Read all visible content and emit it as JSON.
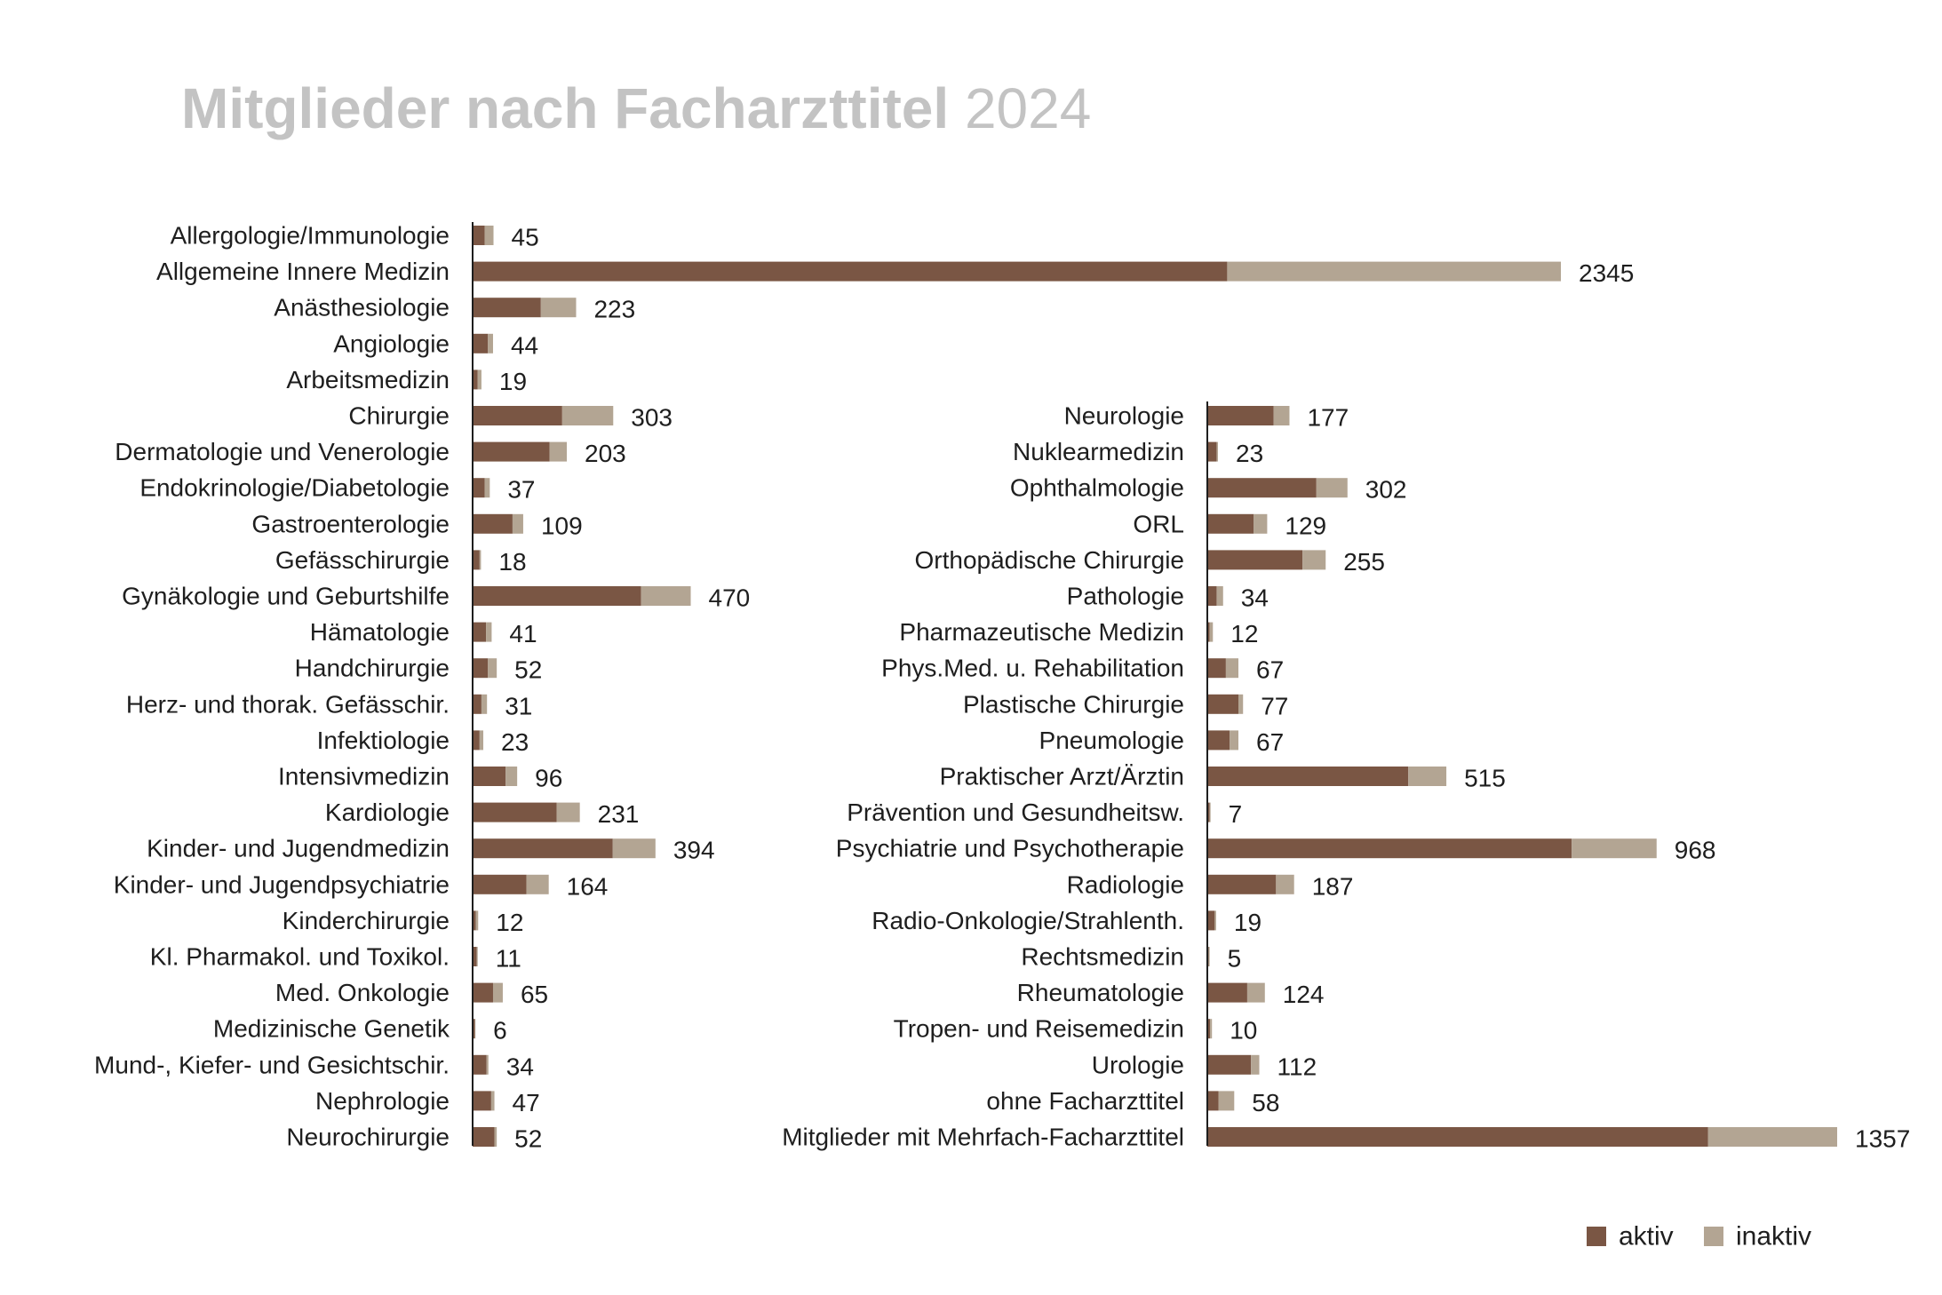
{
  "title": {
    "main": "Mitglieder nach Facharzttitel",
    "year": "2024"
  },
  "chart_data": {
    "type": "bar",
    "orientation": "horizontal",
    "stacked": true,
    "colors": {
      "aktiv": "#7a5644",
      "inaktiv": "#b3a593",
      "axis": "#1e1e1e"
    },
    "legend": {
      "position": "bottom-right",
      "items": [
        "aktiv",
        "inaktiv"
      ]
    },
    "panels": [
      {
        "scale_max": 2345,
        "rows": [
          {
            "label": "Allergologie/Immunologie",
            "total": 45,
            "aktiv": 26,
            "inaktiv": 19
          },
          {
            "label": "Allgemeine Innere Medizin",
            "total": 2345,
            "aktiv": 1626,
            "inaktiv": 719
          },
          {
            "label": "Anästhesiologie",
            "total": 223,
            "aktiv": 147,
            "inaktiv": 76
          },
          {
            "label": "Angiologie",
            "total": 44,
            "aktiv": 33,
            "inaktiv": 11
          },
          {
            "label": "Arbeitsmedizin",
            "total": 19,
            "aktiv": 11,
            "inaktiv": 8
          },
          {
            "label": "Chirurgie",
            "total": 303,
            "aktiv": 193,
            "inaktiv": 110
          },
          {
            "label": "Dermatologie und Venerologie",
            "total": 203,
            "aktiv": 166,
            "inaktiv": 37
          },
          {
            "label": "Endokrinologie/Diabetologie",
            "total": 37,
            "aktiv": 26,
            "inaktiv": 11
          },
          {
            "label": "Gastroenterologie",
            "total": 109,
            "aktiv": 86,
            "inaktiv": 23
          },
          {
            "label": "Gefässchirurgie",
            "total": 18,
            "aktiv": 15,
            "inaktiv": 3
          },
          {
            "label": "Gynäkologie und Geburtshilfe",
            "total": 470,
            "aktiv": 363,
            "inaktiv": 107
          },
          {
            "label": "Hämatologie",
            "total": 41,
            "aktiv": 29,
            "inaktiv": 12
          },
          {
            "label": "Handchirurgie",
            "total": 52,
            "aktiv": 33,
            "inaktiv": 19
          },
          {
            "label": "Herz- und thorak. Gefässchir.",
            "total": 31,
            "aktiv": 19,
            "inaktiv": 12
          },
          {
            "label": "Infektiologie",
            "total": 23,
            "aktiv": 15,
            "inaktiv": 8
          },
          {
            "label": "Intensivmedizin",
            "total": 96,
            "aktiv": 71,
            "inaktiv": 25
          },
          {
            "label": "Kardiologie",
            "total": 231,
            "aktiv": 181,
            "inaktiv": 50
          },
          {
            "label": "Kinder- und Jugendmedizin",
            "total": 394,
            "aktiv": 302,
            "inaktiv": 92
          },
          {
            "label": "Kinder- und Jugendpsychiatrie",
            "total": 164,
            "aktiv": 116,
            "inaktiv": 48
          },
          {
            "label": "Kinderchirurgie",
            "total": 12,
            "aktiv": 7,
            "inaktiv": 5
          },
          {
            "label": "Kl. Pharmakol. und Toxikol.",
            "total": 11,
            "aktiv": 9,
            "inaktiv": 2
          },
          {
            "label": "Med. Onkologie",
            "total": 65,
            "aktiv": 44,
            "inaktiv": 21
          },
          {
            "label": "Medizinische Genetik",
            "total": 6,
            "aktiv": 5,
            "inaktiv": 1
          },
          {
            "label": "Mund-, Kiefer- und Gesichtschir.",
            "total": 34,
            "aktiv": 30,
            "inaktiv": 4
          },
          {
            "label": "Nephrologie",
            "total": 47,
            "aktiv": 40,
            "inaktiv": 7
          },
          {
            "label": "Neurochirurgie",
            "total": 52,
            "aktiv": 47,
            "inaktiv": 5
          }
        ]
      },
      {
        "scale_max": 1357,
        "rows": [
          {
            "label": "Neurologie",
            "total": 177,
            "aktiv": 143,
            "inaktiv": 34
          },
          {
            "label": "Nuklearmedizin",
            "total": 23,
            "aktiv": 20,
            "inaktiv": 3
          },
          {
            "label": "Ophthalmologie",
            "total": 302,
            "aktiv": 235,
            "inaktiv": 67
          },
          {
            "label": "ORL",
            "total": 129,
            "aktiv": 100,
            "inaktiv": 29
          },
          {
            "label": "Orthopädische Chirurgie",
            "total": 255,
            "aktiv": 205,
            "inaktiv": 50
          },
          {
            "label": "Pathologie",
            "total": 34,
            "aktiv": 20,
            "inaktiv": 14
          },
          {
            "label": "Pharmazeutische Medizin",
            "total": 12,
            "aktiv": 5,
            "inaktiv": 7
          },
          {
            "label": "Phys.Med. u. Rehabilitation",
            "total": 67,
            "aktiv": 40,
            "inaktiv": 27
          },
          {
            "label": "Plastische Chirurgie",
            "total": 77,
            "aktiv": 67,
            "inaktiv": 10
          },
          {
            "label": "Pneumologie",
            "total": 67,
            "aktiv": 48,
            "inaktiv": 19
          },
          {
            "label": "Praktischer Arzt/Ärztin",
            "total": 515,
            "aktiv": 433,
            "inaktiv": 82
          },
          {
            "label": "Prävention und Gesundheitsw.",
            "total": 7,
            "aktiv": 5,
            "inaktiv": 2
          },
          {
            "label": "Psychiatrie und Psychotherapie",
            "total": 968,
            "aktiv": 785,
            "inaktiv": 183
          },
          {
            "label": "Radiologie",
            "total": 187,
            "aktiv": 148,
            "inaktiv": 39
          },
          {
            "label": "Radio-Onkologie/Strahlenth.",
            "total": 19,
            "aktiv": 16,
            "inaktiv": 3
          },
          {
            "label": "Rechtsmedizin",
            "total": 5,
            "aktiv": 3,
            "inaktiv": 2
          },
          {
            "label": "Rheumatologie",
            "total": 124,
            "aktiv": 86,
            "inaktiv": 38
          },
          {
            "label": "Tropen- und Reisemedizin",
            "total": 10,
            "aktiv": 6,
            "inaktiv": 4
          },
          {
            "label": "Urologie",
            "total": 112,
            "aktiv": 94,
            "inaktiv": 18
          },
          {
            "label": "ohne Facharzttitel",
            "total": 58,
            "aktiv": 24,
            "inaktiv": 34
          },
          {
            "label": "Mitglieder mit Mehrfach-Facharzttitel",
            "total": 1357,
            "aktiv": 1079,
            "inaktiv": 278
          }
        ]
      }
    ]
  }
}
